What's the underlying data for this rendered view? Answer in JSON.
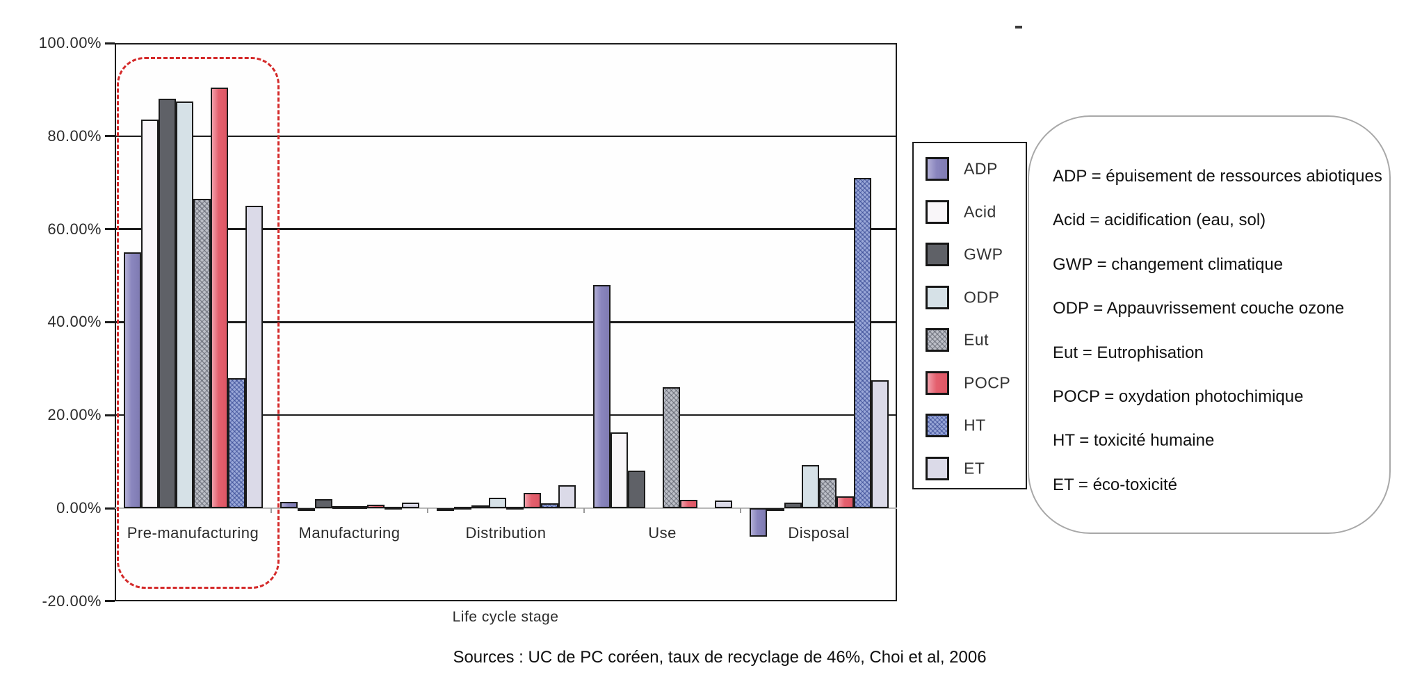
{
  "caption": "Sources : UC de PC coréen, taux de recyclage de 46%, Choi et al, 2006",
  "chart_data": {
    "type": "bar",
    "title": "",
    "xlabel": "Life cycle stage",
    "ylabel": "",
    "ylim": [
      -20,
      100
    ],
    "ytick_values": [
      100,
      80,
      60,
      40,
      20,
      0,
      -20
    ],
    "ytick_labels": [
      "100.00%",
      "80.00%",
      "60.00%",
      "40.00%",
      "20.00%",
      "0.00%",
      "-20.00%"
    ],
    "grid": "horizontal black lines at 20/40/60/80, thin gray zero line",
    "legend_position": "right",
    "categories": [
      "Pre-manufacturing",
      "Manufacturing",
      "Distribution",
      "Use",
      "Disposal"
    ],
    "series": [
      {
        "name": "ADP",
        "color": "#8a86be",
        "pattern": "solid",
        "values": [
          55.0,
          1.4,
          -0.3,
          48.0,
          -6.2
        ]
      },
      {
        "name": "Acid",
        "color": "#f9f6f9",
        "pattern": "solid",
        "values": [
          83.5,
          -0.4,
          0.15,
          16.3,
          -0.5
        ]
      },
      {
        "name": "GWP",
        "color": "#5f6167",
        "pattern": "solid",
        "values": [
          88.0,
          2.0,
          0.6,
          8.0,
          1.2
        ]
      },
      {
        "name": "ODP",
        "color": "#d6e1e7",
        "pattern": "solid",
        "values": [
          87.5,
          0.5,
          2.2,
          0.0,
          9.3
        ]
      },
      {
        "name": "Eut",
        "color": "#bcbfc7",
        "pattern": "crosshatch",
        "values": [
          66.5,
          0.5,
          0.3,
          26.0,
          6.4
        ]
      },
      {
        "name": "POCP",
        "color": "#e4606e",
        "pattern": "solid",
        "values": [
          90.5,
          0.8,
          3.3,
          1.8,
          2.5
        ]
      },
      {
        "name": "HT",
        "color": "#9aa8d8",
        "pattern": "crosshatch",
        "values": [
          28.0,
          0.1,
          1.1,
          0.0,
          71.0
        ]
      },
      {
        "name": "ET",
        "color": "#dbdae8",
        "pattern": "solid",
        "values": [
          65.0,
          1.2,
          5.0,
          1.6,
          27.5
        ]
      }
    ],
    "highlight": {
      "target": "Pre-manufacturing",
      "color": "#d42a2a",
      "style": "dashed-rounded-rect"
    }
  },
  "legend": {
    "entries": [
      "ADP",
      "Acid",
      "GWP",
      "ODP",
      "Eut",
      "POCP",
      "HT",
      "ET"
    ]
  },
  "definitions": {
    "lines": [
      "ADP = épuisement de ressources abiotiques",
      "Acid = acidification (eau, sol)",
      "GWP = changement climatique",
      "ODP = Appauvrissement couche ozone",
      "Eut = Eutrophisation",
      "POCP = oxydation photochimique",
      "HT = toxicité humaine",
      "ET = éco-toxicité"
    ]
  }
}
